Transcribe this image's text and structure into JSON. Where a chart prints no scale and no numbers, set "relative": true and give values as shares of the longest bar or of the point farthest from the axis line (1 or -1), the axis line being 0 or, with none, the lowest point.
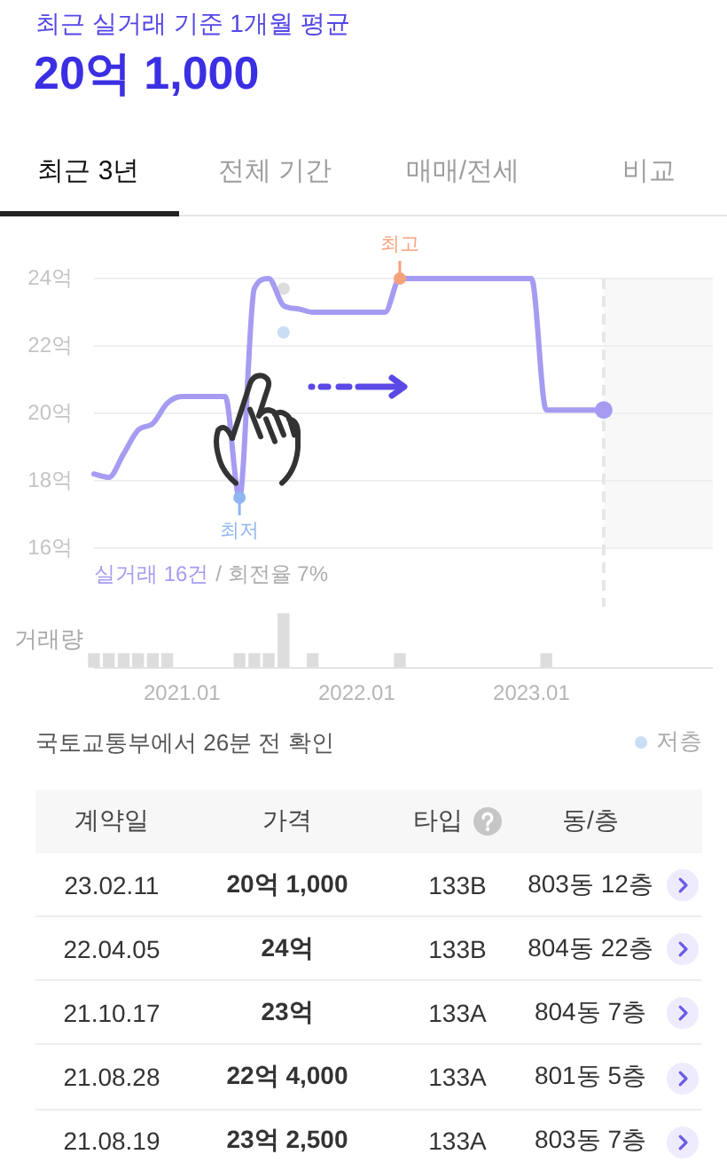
{
  "chart_data": [
    {
      "type": "other",
      "title": "최근 실거래 기준 1개월 평균",
      "subtitle": "20억 1,000",
      "annotations": [
        "최근 3년",
        "전체 기간",
        "매매/전세",
        "비교"
      ]
    },
    {
      "type": "line",
      "x": [
        "2020-07",
        "2020-08",
        "2020-09",
        "2020-10",
        "2020-11",
        "2020-12",
        "2021-01",
        "2021-02",
        "2021-03",
        "2021-04",
        "2021-05",
        "2021-06",
        "2021-07",
        "2021-08",
        "2021-09",
        "2021-10",
        "2021-11",
        "2021-12",
        "2022-01",
        "2022-02",
        "2022-03",
        "2022-04",
        "2022-05",
        "2022-06",
        "2022-07",
        "2022-08",
        "2022-09",
        "2022-10",
        "2022-11",
        "2022-12",
        "2023-01",
        "2023-02",
        "2023-03",
        "2023-04",
        "2023-05",
        "2023-06"
      ],
      "series": [
        {
          "color": "#a59cf2",
          "values": [
            18.2,
            18.1,
            18.8,
            19.5,
            19.7,
            20.3,
            20.5,
            20.5,
            20.5,
            20.5,
            17.5,
            23.7,
            24.0,
            23.2,
            23.1,
            23.0,
            23.0,
            23.0,
            23.0,
            23.0,
            23.0,
            24.0,
            24.0,
            24.0,
            24.0,
            24.0,
            24.0,
            24.0,
            24.0,
            24.0,
            24.0,
            20.1,
            20.1,
            20.1,
            20.1,
            20.1
          ]
        },
        {
          "type": "scatter",
          "color": "#dcdcdc",
          "x": [
            "2021-08"
          ],
          "values": [
            23.7
          ]
        },
        {
          "type": "scatter",
          "name": "저층",
          "color": "#c9ddf5",
          "x": [
            "2021-08"
          ],
          "values": [
            22.4
          ]
        }
      ],
      "xlim": [
        "2020-07",
        "2024-01-15"
      ],
      "ylim": [
        16,
        24
      ],
      "yticks": [
        {
          "value": 16,
          "label": "16억"
        },
        {
          "value": 18,
          "label": "18억"
        },
        {
          "value": 20,
          "label": "20억"
        },
        {
          "value": 22,
          "label": "22억"
        },
        {
          "value": 24,
          "label": "24억"
        }
      ],
      "tick_labels": "y",
      "grid": "y",
      "legend": "bottom right",
      "annotations": [
        {
          "text": "최고",
          "x": "2022-04",
          "y": 24
        },
        {
          "text": "최저",
          "x": "2021-05",
          "y": 17.5
        },
        "실거래 16건",
        "/ 회전율 7%"
      ],
      "ref_lines": [
        {
          "axis": "x",
          "value": "2023-06",
          "color": "#e6e6e6",
          "line_style": "dashed"
        }
      ],
      "bands": [
        {
          "axis": "x",
          "from": "2023-06",
          "to": "2024-01-15",
          "color": "#f8f8f8"
        }
      ]
    },
    {
      "type": "bar",
      "x": [
        "2020-07",
        "2020-08",
        "2020-09",
        "2020-10",
        "2020-11",
        "2020-12",
        "2021-05",
        "2021-06",
        "2021-07",
        "2021-08",
        "2021-10",
        "2022-04",
        "2023-02"
      ],
      "values": [
        0.25,
        0.25,
        0.25,
        0.25,
        0.25,
        0.25,
        0.25,
        0.25,
        0.25,
        1,
        0.25,
        0.25,
        0.25
      ],
      "color": "#dddddd",
      "relative": true,
      "ylabel": "거래량",
      "xlim": [
        "2020-07",
        "2024-01-15"
      ],
      "xticks": [
        {
          "value": "2021-01",
          "label": "2021.01"
        },
        {
          "value": "2022-01",
          "label": "2022.01"
        },
        {
          "value": "2023-01",
          "label": "2023.01"
        }
      ],
      "tick_labels": "x"
    },
    {
      "type": "other",
      "annotations": [
        "국토교통부에서 26분 전 확인",
        "계약일",
        "가격",
        "타입",
        "동/층",
        "23.02.11",
        "20억 1,000",
        "133B",
        "803동 12층",
        "22.04.05",
        "24억",
        "133B",
        "804동 22층",
        "21.10.17",
        "23억",
        "133A",
        "804동 7층",
        "21.08.28",
        "22억 4,000",
        "133A",
        "801동 5층",
        "21.08.19",
        "23억 2,500",
        "133A",
        "803동 7층"
      ]
    }
  ]
}
